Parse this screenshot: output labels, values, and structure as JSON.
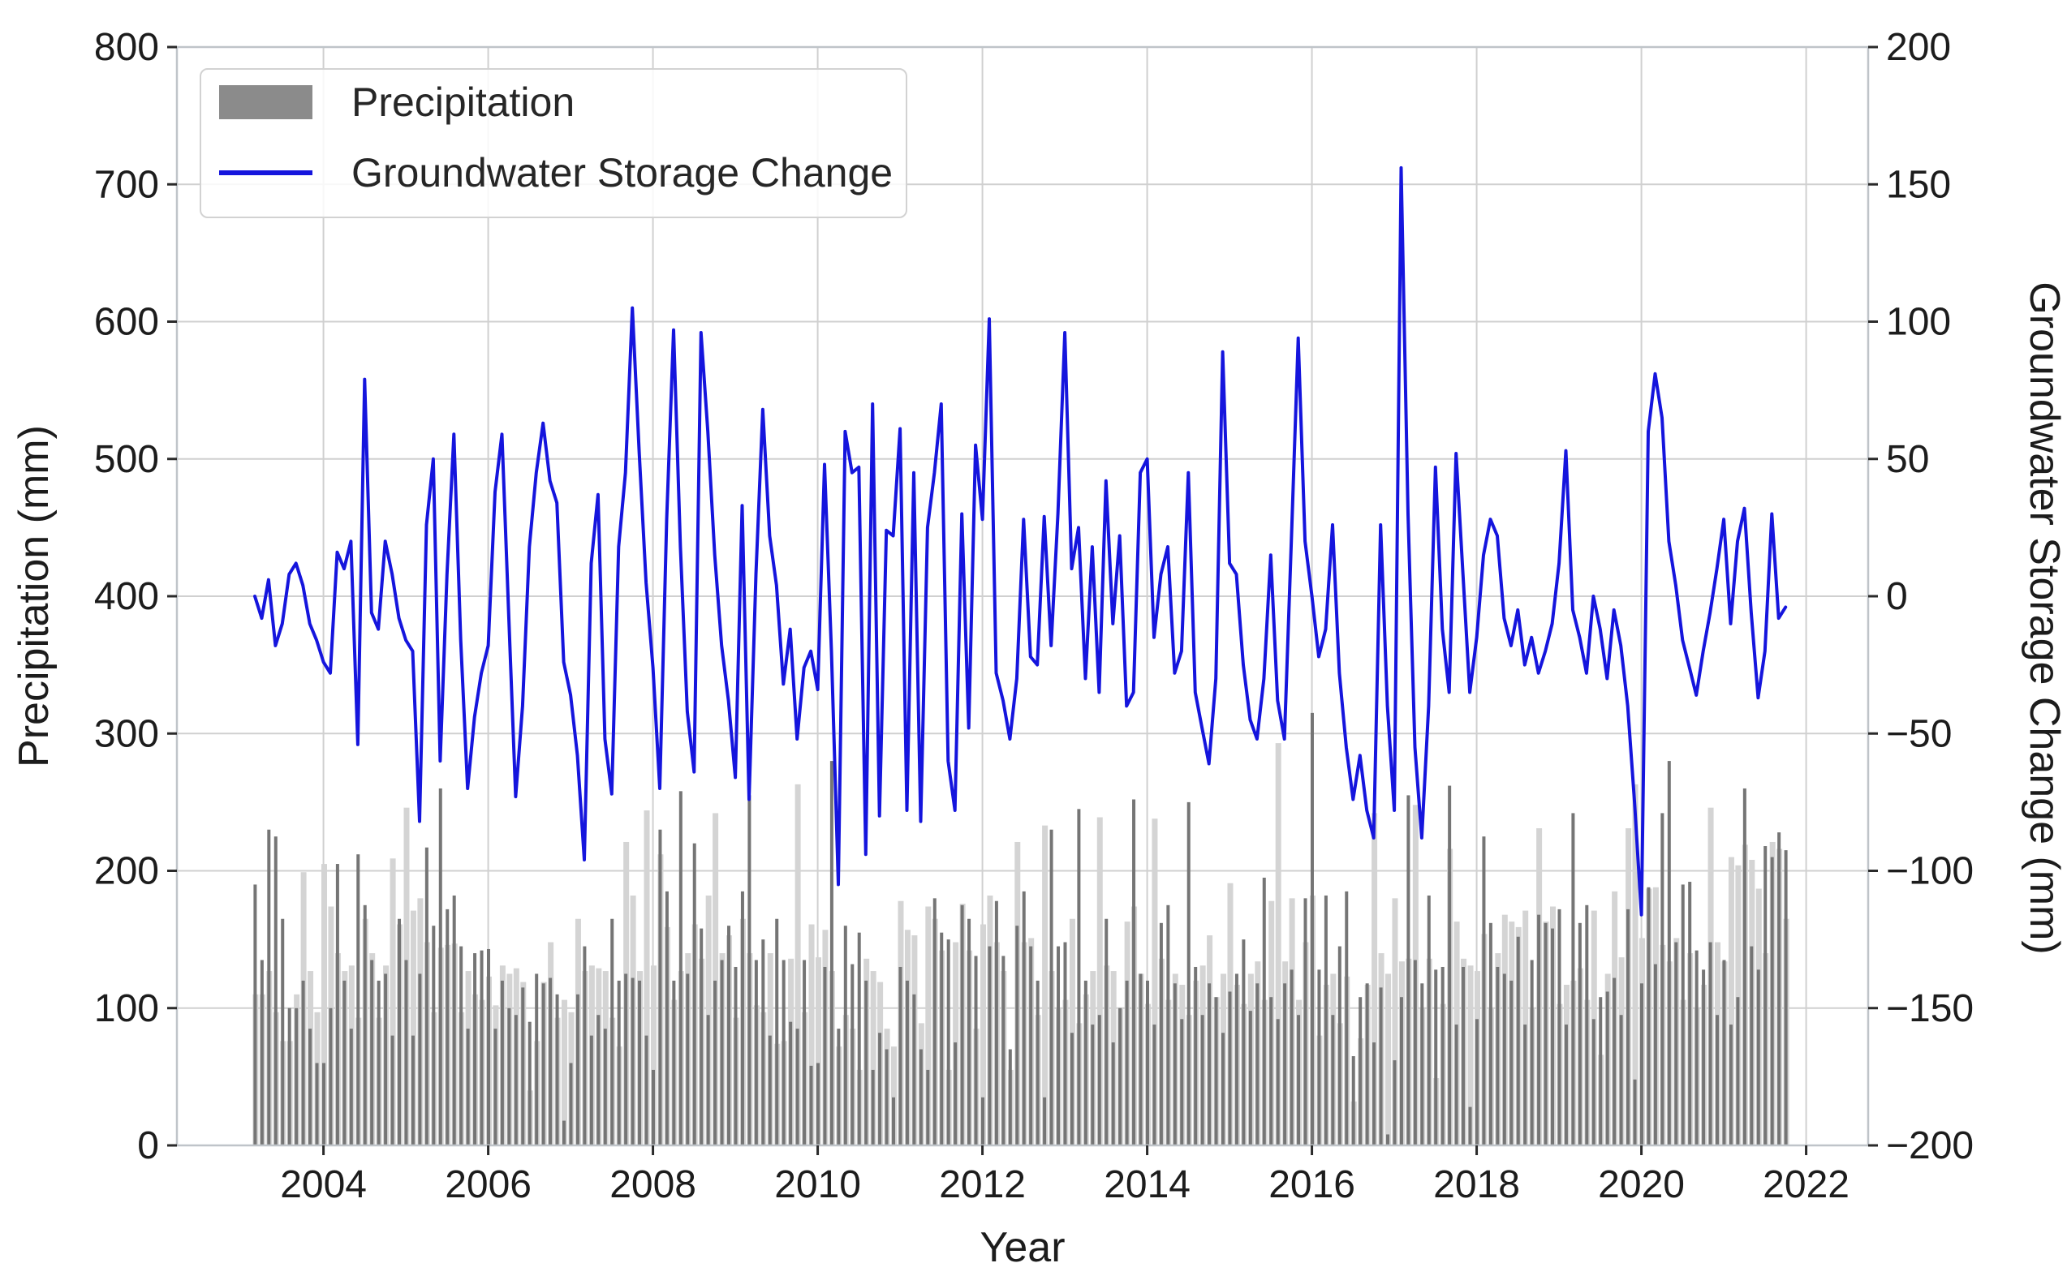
{
  "axes": {
    "x": {
      "label": "Year",
      "tick_labels": [
        2004,
        2006,
        2008,
        2010,
        2012,
        2014,
        2016,
        2018,
        2020,
        2022
      ]
    },
    "y_left": {
      "label": "Precipitation (mm)",
      "min": 0,
      "max": 800,
      "tick_labels": [
        0,
        100,
        200,
        300,
        400,
        500,
        600,
        700,
        800
      ]
    },
    "y_right": {
      "label": "Groundwater Storage Change (mm)",
      "min": -200,
      "max": 200,
      "tick_labels": [
        -200,
        -150,
        -100,
        -50,
        0,
        50,
        100,
        150,
        200
      ]
    }
  },
  "legend": {
    "items": [
      {
        "label": "Precipitation",
        "marker": "bar",
        "color": "#8b8b8b"
      },
      {
        "label": "Groundwater Storage Change",
        "marker": "line",
        "color": "#1515dd"
      }
    ]
  },
  "colors": {
    "line_blue": "#1515dd",
    "bar_dark": "#757575",
    "bar_light": "#d4d4d4",
    "grid": "#d0d0d0",
    "spine": "#bfc4c9",
    "tick": "#2a2a2a",
    "text": "#1c1c1c"
  },
  "chart_data": {
    "type": "bar+line",
    "x_start_month": "2003-03",
    "x_frequency": "monthly",
    "n_points": 224,
    "grid": true,
    "legend_position": "upper-left",
    "series": [
      {
        "name": "Precipitation",
        "type": "bar",
        "axis": "left",
        "unit": "mm",
        "values": [
          190,
          135,
          230,
          225,
          165,
          100,
          100,
          120,
          85,
          60,
          60,
          100,
          205,
          120,
          85,
          212,
          175,
          135,
          120,
          125,
          80,
          165,
          135,
          80,
          125,
          217,
          160,
          260,
          172,
          182,
          145,
          85,
          140,
          142,
          143,
          85,
          120,
          100,
          95,
          115,
          90,
          125,
          118,
          122,
          110,
          18,
          60,
          110,
          145,
          80,
          95,
          85,
          165,
          120,
          125,
          122,
          120,
          80,
          55,
          230,
          185,
          120,
          258,
          125,
          220,
          158,
          95,
          120,
          135,
          160,
          130,
          185,
          255,
          135,
          150,
          80,
          165,
          135,
          90,
          85,
          135,
          58,
          60,
          130,
          280,
          85,
          160,
          132,
          155,
          120,
          55,
          82,
          70,
          35,
          130,
          120,
          110,
          70,
          55,
          180,
          155,
          150,
          75,
          175,
          165,
          138,
          35,
          145,
          178,
          138,
          70,
          160,
          185,
          145,
          120,
          35,
          230,
          145,
          148,
          82,
          245,
          120,
          88,
          95,
          165,
          75,
          100,
          120,
          252,
          125,
          120,
          88,
          162,
          175,
          118,
          92,
          250,
          130,
          95,
          118,
          108,
          82,
          112,
          125,
          150,
          98,
          118,
          195,
          108,
          92,
          118,
          128,
          95,
          180,
          315,
          128,
          182,
          95,
          145,
          185,
          65,
          108,
          118,
          75,
          115,
          8,
          62,
          108,
          255,
          135,
          118,
          182,
          128,
          130,
          262,
          88,
          130,
          28,
          92,
          225,
          162,
          130,
          125,
          120,
          152,
          88,
          135,
          168,
          162,
          158,
          172,
          88,
          242,
          162,
          175,
          92,
          108,
          112,
          122,
          95,
          172,
          48,
          118,
          188,
          132,
          242,
          280,
          148,
          190,
          192,
          142,
          128,
          148,
          95,
          135,
          88,
          108,
          260,
          145,
          128,
          218,
          210,
          228,
          215
        ]
      },
      {
        "name": "Groundwater Storage Change",
        "type": "line",
        "axis": "right",
        "unit": "mm",
        "values": [
          0,
          -8,
          6,
          -18,
          -10,
          8,
          12,
          4,
          -10,
          -16,
          -24,
          -28,
          16,
          10,
          20,
          -54,
          79,
          -6,
          -12,
          20,
          8,
          -8,
          -16,
          -20,
          -82,
          26,
          50,
          -60,
          8,
          59,
          -16,
          -70,
          -44,
          -28,
          -18,
          38,
          59,
          -8,
          -73,
          -40,
          18,
          45,
          63,
          42,
          34,
          -24,
          -36,
          -58,
          -96,
          12,
          37,
          -52,
          -72,
          18,
          45,
          105,
          52,
          5,
          -26,
          -70,
          28,
          97,
          18,
          -42,
          -64,
          96,
          60,
          15,
          -18,
          -38,
          -66,
          33,
          -74,
          8,
          68,
          22,
          4,
          -32,
          -12,
          -52,
          -26,
          -20,
          -34,
          48,
          -20,
          -105,
          60,
          45,
          47,
          -94,
          70,
          -80,
          24,
          22,
          61,
          -78,
          45,
          -82,
          25,
          45,
          70,
          -60,
          -78,
          30,
          -48,
          55,
          28,
          101,
          -28,
          -38,
          -52,
          -30,
          28,
          -22,
          -25,
          29,
          -18,
          30,
          96,
          10,
          25,
          -30,
          18,
          -35,
          42,
          -10,
          22,
          -40,
          -35,
          45,
          50,
          -15,
          8,
          18,
          -28,
          -20,
          45,
          -35,
          -48,
          -61,
          -30,
          89,
          12,
          8,
          -25,
          -45,
          -52,
          -30,
          15,
          -38,
          -52,
          20,
          94,
          20,
          0,
          -22,
          -12,
          26,
          -28,
          -55,
          -74,
          -58,
          -78,
          -88,
          26,
          -40,
          -78,
          156,
          30,
          -55,
          -88,
          -40,
          47,
          -12,
          -35,
          52,
          8,
          -35,
          -15,
          15,
          28,
          22,
          -8,
          -18,
          -5,
          -25,
          -15,
          -28,
          -20,
          -10,
          12,
          53,
          -5,
          -15,
          -28,
          0,
          -12,
          -30,
          -5,
          -18,
          -40,
          -75,
          -116,
          60,
          81,
          65,
          20,
          4,
          -16,
          -26,
          -36,
          -20,
          -6,
          10,
          28,
          -10,
          20,
          32,
          -6,
          -37,
          -20,
          30,
          -8,
          -4
        ]
      }
    ]
  }
}
